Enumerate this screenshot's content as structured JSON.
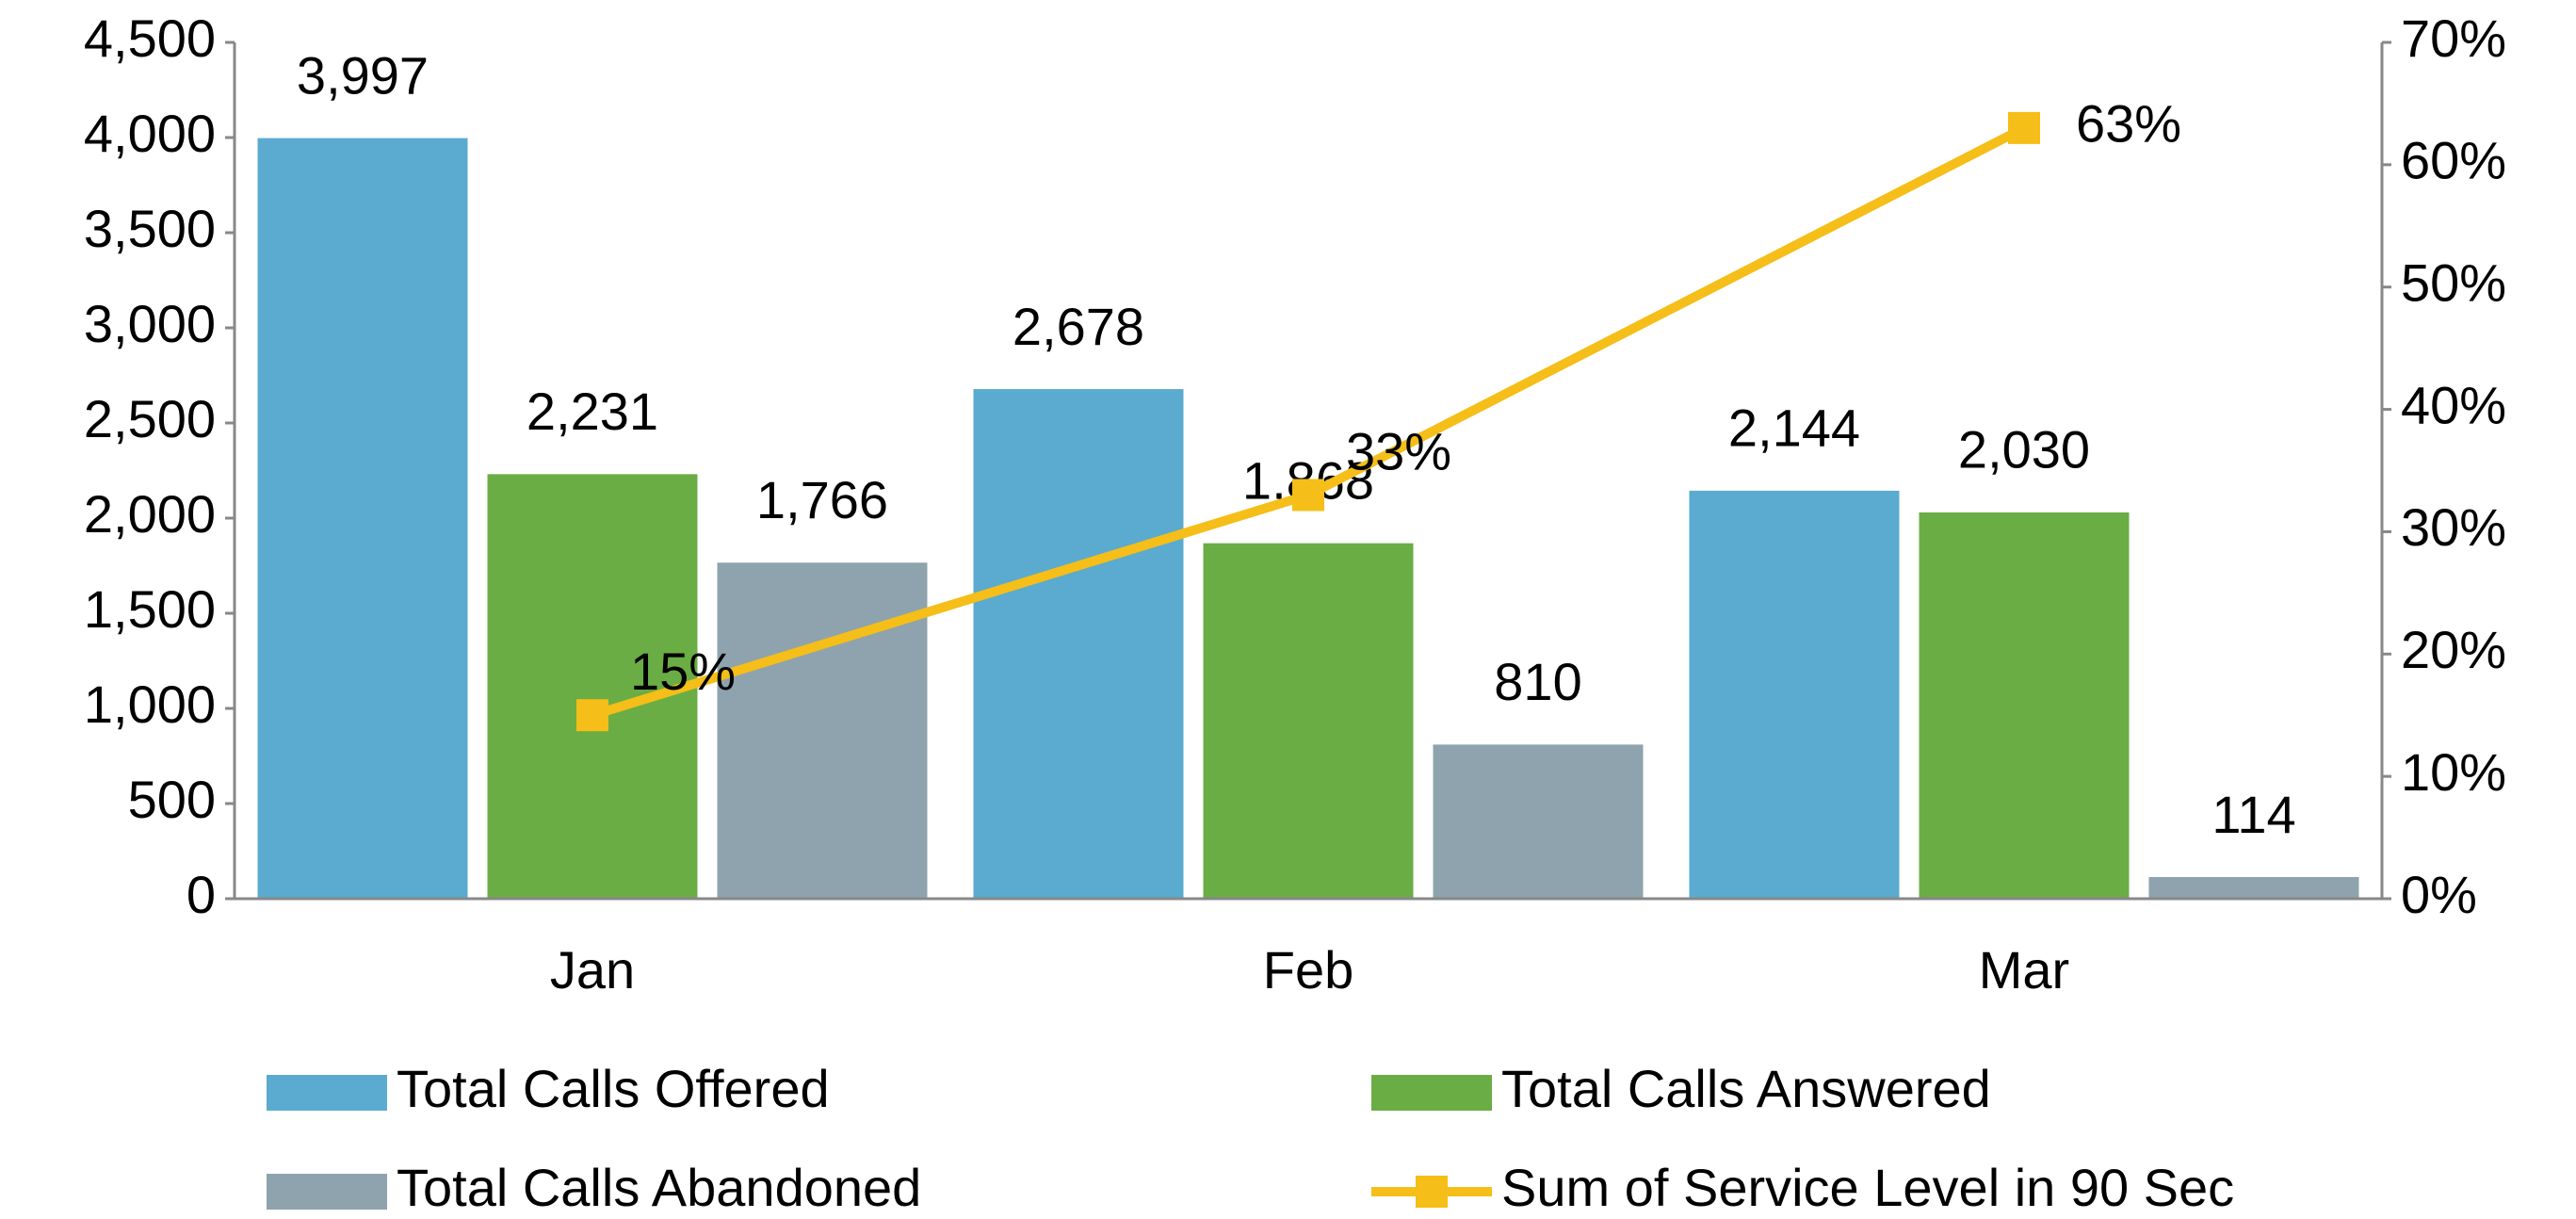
{
  "chart_data": {
    "type": "bar",
    "categories": [
      "Jan",
      "Feb",
      "Mar"
    ],
    "series": [
      {
        "name": "Total Calls Offered",
        "color": "#5aabcf",
        "values": [
          3997,
          2678,
          2144
        ],
        "value_labels": [
          "3,997",
          "2,678",
          "2,144"
        ]
      },
      {
        "name": "Total Calls Answered",
        "color": "#6aad45",
        "values": [
          2231,
          1868,
          2030
        ],
        "value_labels": [
          "2,231",
          "1,868",
          "2,030"
        ]
      },
      {
        "name": "Total Calls Abandoned",
        "color": "#8ea3ad",
        "values": [
          1766,
          810,
          114
        ],
        "value_labels": [
          "1,766",
          "810",
          "114"
        ]
      },
      {
        "name": "Sum of Service Level in 90 Sec",
        "type": "line",
        "axis": "y2",
        "color": "#f5be18",
        "values": [
          15,
          33,
          63
        ],
        "value_labels": [
          "15%",
          "33%",
          "63%"
        ]
      }
    ],
    "ylim": [
      0,
      4500
    ],
    "yticks": [
      0,
      500,
      {
        "value": 1000,
        "label": "1,000"
      },
      {
        "value": 1500,
        "label": "1,500"
      },
      {
        "value": 2000,
        "label": "2,000"
      },
      {
        "value": 2500,
        "label": "2,500"
      },
      {
        "value": 3000,
        "label": "3,000"
      },
      {
        "value": 3500,
        "label": "3,500"
      },
      {
        "value": 4000,
        "label": "4,000"
      },
      {
        "value": 4500,
        "label": "4,500"
      }
    ],
    "y2lim": [
      0,
      70
    ],
    "y2ticks": [
      {
        "value": 0,
        "label": "0%"
      },
      {
        "value": 10,
        "label": "10%"
      },
      {
        "value": 20,
        "label": "20%"
      },
      {
        "value": 30,
        "label": "30%"
      },
      {
        "value": 40,
        "label": "40%"
      },
      {
        "value": 50,
        "label": "50%"
      },
      {
        "value": 60,
        "label": "60%"
      },
      {
        "value": 70,
        "label": "70%"
      }
    ],
    "legend": "bottom"
  }
}
